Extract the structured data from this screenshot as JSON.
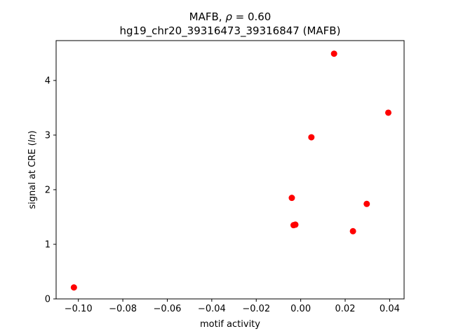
{
  "chart_data": {
    "type": "scatter",
    "title": {
      "gene": "MAFB",
      "rho_prefix": ", ",
      "rho_symbol": "ρ",
      "rho_rest": " = 0.60",
      "line2": "hg19_chr20_39316473_39316847 (MAFB)"
    },
    "xlabel": "motif activity",
    "ylabel": {
      "prefix": "signal at CRE (",
      "italic": "ln",
      "suffix": ")"
    },
    "xlim": [
      -0.11,
      0.0465
    ],
    "ylim": [
      0,
      4.73
    ],
    "xticks": [
      -0.1,
      -0.08,
      -0.06,
      -0.04,
      -0.02,
      0.0,
      0.02,
      0.04
    ],
    "xtick_labels": [
      "−0.10",
      "−0.08",
      "−0.06",
      "−0.04",
      "−0.02",
      "0.00",
      "0.02",
      "0.04"
    ],
    "yticks": [
      0,
      1,
      2,
      3,
      4
    ],
    "ytick_labels": [
      "0",
      "1",
      "2",
      "3",
      "4"
    ],
    "grid": false,
    "marker_color": "#ff0000",
    "points": [
      {
        "x": -0.102,
        "y": 0.21
      },
      {
        "x": -0.004,
        "y": 1.85
      },
      {
        "x": -0.0032,
        "y": 1.35
      },
      {
        "x": -0.0024,
        "y": 1.36
      },
      {
        "x": 0.0048,
        "y": 2.96
      },
      {
        "x": 0.015,
        "y": 4.49
      },
      {
        "x": 0.0235,
        "y": 1.24
      },
      {
        "x": 0.0297,
        "y": 1.74
      },
      {
        "x": 0.0394,
        "y": 3.41
      }
    ]
  }
}
